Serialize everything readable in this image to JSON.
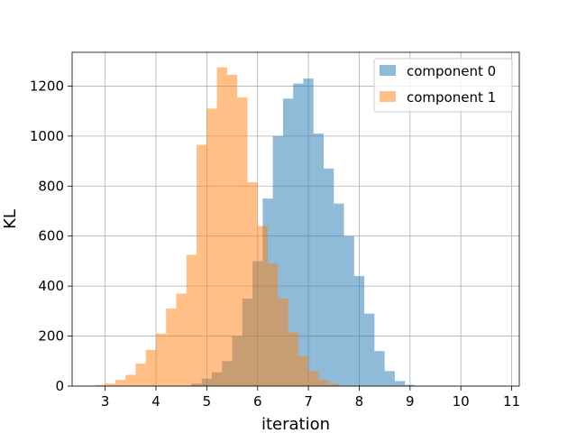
{
  "chart_data": {
    "type": "histogram",
    "title": "",
    "xlabel": "iteration",
    "ylabel": "KL",
    "xlim": [
      2.35,
      11.15
    ],
    "ylim": [
      0,
      1335
    ],
    "xticks": [
      3,
      4,
      5,
      6,
      7,
      8,
      9,
      10,
      11
    ],
    "yticks": [
      0,
      200,
      400,
      600,
      800,
      1000,
      1200
    ],
    "grid": true,
    "legend_position": "top-right",
    "bar_opacity": 0.5,
    "series": [
      {
        "name": "component 0",
        "color": "#1f77b4",
        "bin_start": 4.5,
        "bin_width": 0.2,
        "counts": [
          2,
          10,
          30,
          55,
          100,
          200,
          350,
          500,
          750,
          1000,
          1150,
          1210,
          1230,
          1010,
          870,
          730,
          600,
          440,
          290,
          140,
          60,
          20,
          5
        ]
      },
      {
        "name": "component 1",
        "color": "#ff7f0e",
        "bin_start": 2.6,
        "bin_width": 0.2,
        "counts": [
          2,
          5,
          10,
          25,
          45,
          90,
          145,
          210,
          310,
          370,
          525,
          965,
          1110,
          1275,
          1245,
          1155,
          815,
          640,
          490,
          350,
          215,
          120,
          60,
          25,
          10,
          2
        ]
      }
    ]
  }
}
